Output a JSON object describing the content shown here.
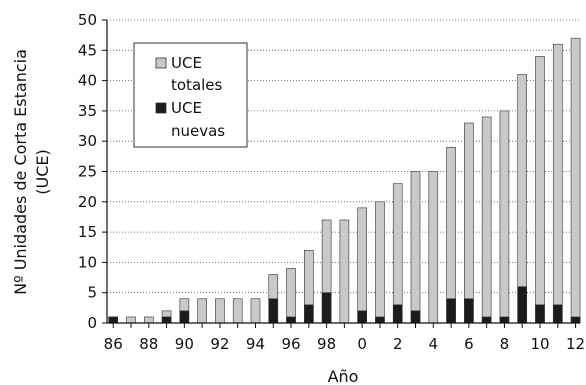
{
  "chart_data": {
    "type": "bar",
    "stacking": "overlay",
    "categories": [
      "86",
      "87",
      "88",
      "89",
      "90",
      "91",
      "92",
      "93",
      "94",
      "95",
      "96",
      "97",
      "98",
      "99",
      "0",
      "1",
      "2",
      "3",
      "4",
      "5",
      "6",
      "7",
      "8",
      "9",
      "10",
      "11",
      "12"
    ],
    "x_tick_labels": [
      "86",
      "88",
      "90",
      "92",
      "94",
      "96",
      "98",
      "0",
      "2",
      "4",
      "6",
      "8",
      "10",
      "12"
    ],
    "series": [
      {
        "name": "UCE totales",
        "color": "#c9c9c9",
        "values": [
          1,
          1,
          1,
          2,
          4,
          4,
          4,
          4,
          4,
          8,
          9,
          12,
          17,
          17,
          19,
          20,
          23,
          25,
          25,
          29,
          33,
          34,
          35,
          41,
          44,
          46,
          47
        ]
      },
      {
        "name": "UCE nuevas",
        "color": "#1c1c1c",
        "values": [
          1,
          0,
          0,
          1,
          2,
          0,
          0,
          0,
          0,
          4,
          1,
          3,
          5,
          0,
          2,
          1,
          3,
          2,
          0,
          4,
          4,
          1,
          1,
          6,
          3,
          3,
          1
        ]
      }
    ],
    "ylim": [
      0,
      50
    ],
    "y_ticks": [
      0,
      5,
      10,
      15,
      20,
      25,
      30,
      35,
      40,
      45,
      50
    ],
    "xlabel": "Año",
    "ylabel_line1": "Nº Unidades de Corta  Estancia",
    "ylabel_line2": "(UCE)",
    "legend": {
      "position": "top-left",
      "entries": [
        {
          "line1": "UCE",
          "line2": "totales"
        },
        {
          "line1": "UCE",
          "line2": "nuevas"
        }
      ]
    },
    "grid": "horizontal-dotted"
  }
}
